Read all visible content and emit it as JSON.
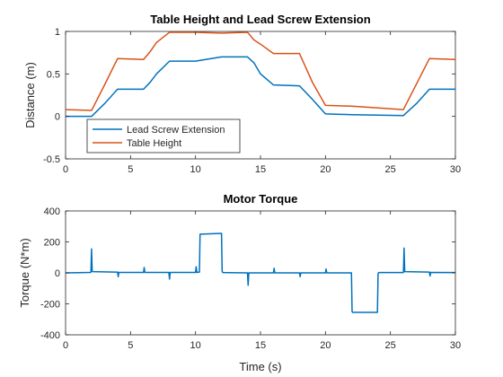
{
  "chart_data": [
    {
      "type": "line",
      "title": "Table Height and Lead Screw Extension",
      "xlabel": "",
      "ylabel": "Distance (m)",
      "xlim": [
        0,
        30
      ],
      "ylim": [
        -0.5,
        1
      ],
      "xticks": [
        0,
        5,
        10,
        15,
        20,
        25,
        30
      ],
      "xtick_labels": [
        "0",
        "5",
        "10",
        "15",
        "20",
        "25",
        "30"
      ],
      "yticks": [
        -0.5,
        0,
        0.5,
        1
      ],
      "ytick_labels": [
        "-0.5",
        "0",
        "0.5",
        "1"
      ],
      "legend_position": "bottom-left",
      "series": [
        {
          "name": "Lead Screw Extension",
          "color": "#0072BD",
          "x": [
            0,
            2,
            3,
            4,
            6,
            6.5,
            7,
            8,
            10,
            12,
            14,
            14.5,
            15,
            16,
            18,
            19,
            20,
            22,
            26,
            27,
            28,
            30
          ],
          "y": [
            0,
            0,
            0.15,
            0.32,
            0.32,
            0.4,
            0.5,
            0.65,
            0.65,
            0.7,
            0.7,
            0.63,
            0.5,
            0.37,
            0.36,
            0.2,
            0.03,
            0.02,
            0.01,
            0.15,
            0.32,
            0.32
          ]
        },
        {
          "name": "Table Height",
          "color": "#D95319",
          "x": [
            0,
            2,
            3,
            4,
            6,
            6.5,
            7,
            8,
            10,
            12,
            14,
            14.5,
            15,
            16,
            18,
            19,
            20,
            22,
            26,
            27,
            28,
            30
          ],
          "y": [
            0.08,
            0.07,
            0.37,
            0.68,
            0.67,
            0.76,
            0.87,
            0.99,
            0.99,
            0.98,
            0.99,
            0.9,
            0.85,
            0.74,
            0.74,
            0.4,
            0.13,
            0.12,
            0.08,
            0.38,
            0.68,
            0.67
          ]
        }
      ]
    },
    {
      "type": "line",
      "title": "Motor Torque",
      "xlabel": "Time (s)",
      "ylabel": "Torque (N*m)",
      "xlim": [
        0,
        30
      ],
      "ylim": [
        -400,
        400
      ],
      "xticks": [
        0,
        5,
        10,
        15,
        20,
        25,
        30
      ],
      "xtick_labels": [
        "0",
        "5",
        "10",
        "15",
        "20",
        "25",
        "30"
      ],
      "yticks": [
        -400,
        -200,
        0,
        200,
        400
      ],
      "ytick_labels": [
        "-400",
        "-200",
        "0",
        "200",
        "400"
      ],
      "series": [
        {
          "color": "#0072BD",
          "x": [
            0,
            1.95,
            2,
            2.05,
            2.1,
            4,
            4.05,
            4.1,
            6,
            6.05,
            6.1,
            7.95,
            8,
            8.05,
            10,
            10.05,
            10.1,
            10.3,
            10.35,
            12,
            12.05,
            12.1,
            14,
            14.05,
            14.1,
            16,
            16.05,
            16.1,
            18,
            18.05,
            18.1,
            20,
            20.05,
            20.1,
            22,
            22.05,
            22.1,
            24,
            24.05,
            24.1,
            26,
            26.05,
            26.1,
            28,
            28.05,
            28.1,
            30
          ],
          "y": [
            0,
            3,
            155,
            10,
            8,
            5,
            -25,
            3,
            3,
            35,
            3,
            3,
            -40,
            3,
            3,
            40,
            3,
            5,
            250,
            255,
            10,
            2,
            0,
            -80,
            0,
            0,
            30,
            0,
            0,
            -25,
            0,
            0,
            25,
            0,
            0,
            -250,
            -255,
            -255,
            -5,
            2,
            2,
            160,
            8,
            5,
            -20,
            3,
            2
          ]
        }
      ]
    }
  ]
}
